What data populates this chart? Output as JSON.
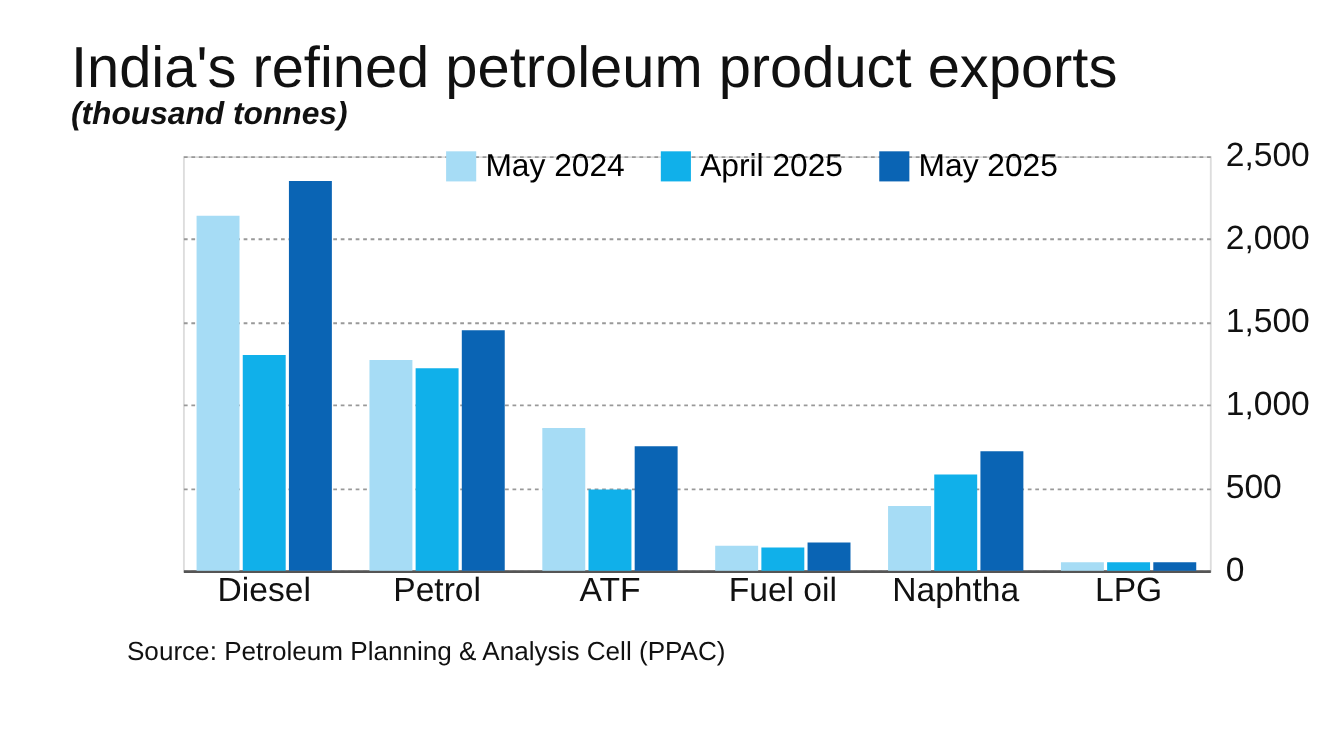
{
  "chart_data": {
    "type": "bar",
    "title": "India's refined petroleum product exports",
    "ylabel": "(thousand tonnes)",
    "categories": [
      "Diesel",
      "Petrol",
      "ATF",
      "Fuel oil",
      "Naphtha",
      "LPG"
    ],
    "series": [
      {
        "name": "May 2024",
        "color": "#a6dcf5",
        "values": [
          2140,
          1270,
          860,
          150,
          390,
          50
        ]
      },
      {
        "name": "April 2025",
        "color": "#10b0ea",
        "values": [
          1300,
          1220,
          490,
          140,
          580,
          50
        ]
      },
      {
        "name": "May 2025",
        "color": "#0a64b4",
        "values": [
          2350,
          1450,
          750,
          170,
          720,
          50
        ]
      }
    ],
    "ylim": [
      0,
      2500
    ],
    "yticks": [
      0,
      500,
      {
        "value": 1000,
        "label": "1,000"
      },
      {
        "value": 1500,
        "label": "1,500"
      },
      {
        "value": 2000,
        "label": "2,000"
      },
      {
        "value": 2500,
        "label": "2,500"
      }
    ],
    "grid": "y",
    "legend": "top",
    "annotations": [
      "Source: Petroleum Planning & Analysis Cell (PPAC)"
    ]
  }
}
